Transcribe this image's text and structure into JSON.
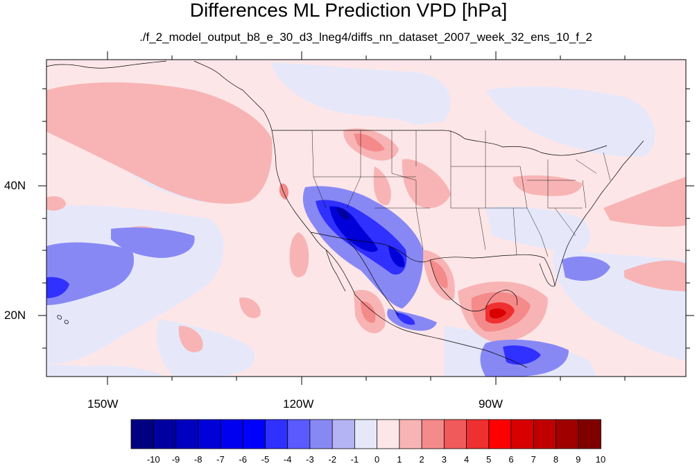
{
  "title": "Differences ML Prediction VPD [hPa]",
  "subtitle": "./f_2_model_output_b8_e_30_d3_lneg4/diffs_nn_dataset_2007_week_32_ens_10_f_2",
  "axes": {
    "lon_labels": [
      "150W",
      "120W",
      "90W"
    ],
    "lat_labels": [
      "40N",
      "20N"
    ]
  },
  "colorbar": {
    "labels": [
      "-10",
      "-9",
      "-8",
      "-7",
      "-6",
      "-5",
      "-4",
      "-3",
      "-2",
      "-1",
      "0",
      "1",
      "2",
      "3",
      "4",
      "5",
      "6",
      "7",
      "8",
      "9",
      "10"
    ],
    "colors": [
      "#000080",
      "#0000a0",
      "#0000c0",
      "#0000d8",
      "#0000f0",
      "#0000ff",
      "#3030ff",
      "#5a5aff",
      "#8888f5",
      "#b4b4f5",
      "#e6e8fa",
      "#fde6e8",
      "#f8b4b4",
      "#f58a8a",
      "#f05a5a",
      "#ee3030",
      "#ff0000",
      "#d80000",
      "#c00000",
      "#a00000",
      "#800000"
    ]
  },
  "palette": {
    "ocean_bg": "#fde6e8",
    "land": "#fde6e8",
    "border": "#000000"
  }
}
